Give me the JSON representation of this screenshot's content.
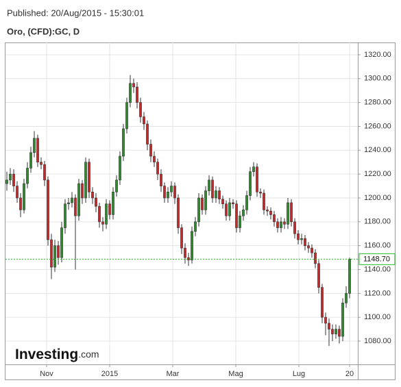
{
  "header": {
    "published": "Published: 20/Aug/2015 - 15:30:01"
  },
  "chart_data": {
    "type": "candlestick",
    "title": "Oro, (CFD):GC, D",
    "watermark": "Investing",
    "watermark_suffix": ".com",
    "up_color": "#2e8b2e",
    "down_color": "#c8282a",
    "grid": true,
    "ylim": [
      1060.5,
      1330.3
    ],
    "yticks": [
      {
        "value": 1080,
        "label": "1080.00"
      },
      {
        "value": 1100,
        "label": "1100.00"
      },
      {
        "value": 1120,
        "label": "1120.00"
      },
      {
        "value": 1140,
        "label": "1140.00"
      },
      {
        "value": 1160,
        "label": "1160.00"
      },
      {
        "value": 1180,
        "label": "1180.00"
      },
      {
        "value": 1200,
        "label": "1200.00"
      },
      {
        "value": 1220,
        "label": "1220.00"
      },
      {
        "value": 1240,
        "label": "1240.00"
      },
      {
        "value": 1260,
        "label": "1260.00"
      },
      {
        "value": 1280,
        "label": "1280.00"
      },
      {
        "value": 1300,
        "label": "1300.00"
      },
      {
        "value": 1320,
        "label": "1320.00"
      }
    ],
    "xlim": [
      -0.4,
      102.4
    ],
    "xticks": [
      {
        "value": 11.6,
        "label": "Nov"
      },
      {
        "value": 30,
        "label": "2015"
      },
      {
        "value": 48.4,
        "label": "Mar"
      },
      {
        "value": 66.8,
        "label": "Mag"
      },
      {
        "value": 85.2,
        "label": "Lug"
      },
      {
        "value": 100,
        "label": "20"
      }
    ],
    "last_price": {
      "value": 1148.7,
      "label": "1148.70",
      "color": "#22bb22"
    },
    "ohlc": [
      [
        1212,
        1222,
        1206,
        1215
      ],
      [
        1215,
        1225,
        1211,
        1220
      ],
      [
        1220,
        1224,
        1205,
        1210
      ],
      [
        1210,
        1214,
        1196,
        1200
      ],
      [
        1200,
        1204,
        1184,
        1190
      ],
      [
        1190,
        1216,
        1187,
        1212
      ],
      [
        1212,
        1230,
        1208,
        1225
      ],
      [
        1225,
        1243,
        1221,
        1238
      ],
      [
        1238,
        1256,
        1234,
        1250
      ],
      [
        1250,
        1253,
        1226,
        1230
      ],
      [
        1230,
        1234,
        1224,
        1228
      ],
      [
        1228,
        1231,
        1210,
        1215
      ],
      [
        1215,
        1218,
        1160,
        1165
      ],
      [
        1165,
        1170,
        1132,
        1142
      ],
      [
        1142,
        1165,
        1138,
        1160
      ],
      [
        1160,
        1164,
        1144,
        1150
      ],
      [
        1150,
        1180,
        1146,
        1175
      ],
      [
        1175,
        1199,
        1170,
        1195
      ],
      [
        1195,
        1200,
        1190,
        1196
      ],
      [
        1196,
        1205,
        1192,
        1200
      ],
      [
        1200,
        1203,
        1140,
        1185
      ],
      [
        1185,
        1216,
        1181,
        1212
      ],
      [
        1212,
        1215,
        1195,
        1200
      ],
      [
        1200,
        1234,
        1196,
        1230
      ],
      [
        1230,
        1233,
        1200,
        1205
      ],
      [
        1205,
        1209,
        1195,
        1200
      ],
      [
        1200,
        1204,
        1188,
        1193
      ],
      [
        1193,
        1196,
        1175,
        1180
      ],
      [
        1180,
        1184,
        1172,
        1178
      ],
      [
        1178,
        1199,
        1174,
        1195
      ],
      [
        1195,
        1198,
        1182,
        1186
      ],
      [
        1186,
        1209,
        1182,
        1205
      ],
      [
        1205,
        1219,
        1201,
        1215
      ],
      [
        1215,
        1239,
        1211,
        1235
      ],
      [
        1235,
        1262,
        1231,
        1258
      ],
      [
        1258,
        1284,
        1254,
        1280
      ],
      [
        1280,
        1303,
        1276,
        1296
      ],
      [
        1296,
        1300,
        1288,
        1293
      ],
      [
        1293,
        1297,
        1275,
        1280
      ],
      [
        1280,
        1284,
        1263,
        1268
      ],
      [
        1268,
        1272,
        1257,
        1262
      ],
      [
        1262,
        1265,
        1240,
        1245
      ],
      [
        1245,
        1249,
        1230,
        1235
      ],
      [
        1235,
        1239,
        1226,
        1230
      ],
      [
        1230,
        1233,
        1215,
        1220
      ],
      [
        1220,
        1224,
        1205,
        1210
      ],
      [
        1210,
        1213,
        1196,
        1200
      ],
      [
        1200,
        1209,
        1196,
        1205
      ],
      [
        1205,
        1214,
        1201,
        1210
      ],
      [
        1210,
        1213,
        1195,
        1200
      ],
      [
        1200,
        1203,
        1170,
        1175
      ],
      [
        1175,
        1178,
        1153,
        1158
      ],
      [
        1158,
        1162,
        1145,
        1150
      ],
      [
        1150,
        1154,
        1143,
        1148
      ],
      [
        1148,
        1176,
        1145,
        1172
      ],
      [
        1172,
        1184,
        1168,
        1180
      ],
      [
        1180,
        1204,
        1176,
        1200
      ],
      [
        1200,
        1203,
        1186,
        1190
      ],
      [
        1190,
        1210,
        1186,
        1206
      ],
      [
        1206,
        1219,
        1202,
        1215
      ],
      [
        1215,
        1218,
        1196,
        1200
      ],
      [
        1200,
        1210,
        1196,
        1206
      ],
      [
        1206,
        1209,
        1195,
        1199
      ],
      [
        1199,
        1202,
        1191,
        1195
      ],
      [
        1195,
        1198,
        1181,
        1185
      ],
      [
        1185,
        1200,
        1181,
        1196
      ],
      [
        1196,
        1199,
        1191,
        1195
      ],
      [
        1195,
        1198,
        1171,
        1175
      ],
      [
        1175,
        1189,
        1171,
        1185
      ],
      [
        1185,
        1194,
        1181,
        1190
      ],
      [
        1190,
        1206,
        1186,
        1202
      ],
      [
        1202,
        1226,
        1198,
        1222
      ],
      [
        1222,
        1230,
        1218,
        1226
      ],
      [
        1226,
        1229,
        1201,
        1205
      ],
      [
        1205,
        1208,
        1200,
        1204
      ],
      [
        1204,
        1207,
        1186,
        1190
      ],
      [
        1190,
        1193,
        1185,
        1189
      ],
      [
        1189,
        1192,
        1182,
        1186
      ],
      [
        1186,
        1189,
        1176,
        1180
      ],
      [
        1180,
        1183,
        1171,
        1175
      ],
      [
        1175,
        1184,
        1171,
        1180
      ],
      [
        1180,
        1183,
        1174,
        1178
      ],
      [
        1178,
        1200,
        1174,
        1196
      ],
      [
        1196,
        1199,
        1176,
        1180
      ],
      [
        1180,
        1183,
        1166,
        1170
      ],
      [
        1170,
        1173,
        1161,
        1165
      ],
      [
        1165,
        1170,
        1161,
        1166
      ],
      [
        1166,
        1169,
        1156,
        1160
      ],
      [
        1160,
        1163,
        1154,
        1158
      ],
      [
        1158,
        1161,
        1150,
        1154
      ],
      [
        1154,
        1157,
        1141,
        1145
      ],
      [
        1145,
        1148,
        1120,
        1125
      ],
      [
        1125,
        1128,
        1095,
        1100
      ],
      [
        1100,
        1104,
        1085,
        1095
      ],
      [
        1095,
        1099,
        1076,
        1090
      ],
      [
        1090,
        1094,
        1080,
        1086
      ],
      [
        1086,
        1094,
        1082,
        1090
      ],
      [
        1090,
        1093,
        1078,
        1084
      ],
      [
        1084,
        1116,
        1080,
        1112
      ],
      [
        1112,
        1126,
        1108,
        1120
      ],
      [
        1120,
        1150,
        1116,
        1148.7
      ]
    ]
  }
}
